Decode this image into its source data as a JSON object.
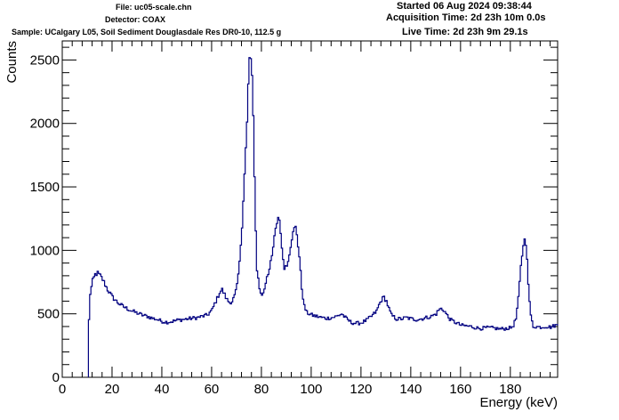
{
  "header": {
    "file": "File: uc05-scale.chn",
    "detector": "Detector: COAX",
    "sample": "Sample: UCalgary L05, Soil Sediment Douglasdale Res DR0-10, 112.5 g",
    "started": "Started 06 Aug 2024 09:38:44",
    "acquisition": "Acquisition Time: 2d 23h 10m 0.0s",
    "live": "Live Time: 2d 23h 9m 29.1s"
  },
  "chart_data": {
    "type": "line",
    "style": "step-histogram",
    "xlabel": "Energy (keV)",
    "ylabel": "Counts",
    "xlim": [
      0,
      199
    ],
    "ylim": [
      0,
      2650
    ],
    "x_ticks": [
      0,
      20,
      40,
      60,
      80,
      100,
      120,
      140,
      160,
      180
    ],
    "x_tick_labels": [
      "0",
      "20",
      "40",
      "60",
      "80",
      "100",
      "120",
      "140",
      "160",
      "180"
    ],
    "y_ticks": [
      0,
      500,
      1000,
      1500,
      2000,
      2500
    ],
    "y_tick_labels": [
      "0",
      "500",
      "1000",
      "1500",
      "2000",
      "2500"
    ],
    "line_color": "#000080",
    "series": [
      {
        "x": [
          10.5,
          11,
          12,
          13,
          14,
          15,
          16,
          17,
          18,
          20,
          22,
          24,
          26,
          28,
          30,
          32,
          34,
          36,
          38,
          40,
          42,
          44,
          46,
          48,
          50,
          52,
          54,
          56,
          58,
          60,
          61,
          62,
          63,
          64,
          65,
          66,
          67,
          68,
          69,
          70,
          71,
          72,
          73,
          74,
          74.5,
          75,
          75.5,
          76,
          76.5,
          77,
          77.5,
          78,
          79,
          80,
          81,
          82,
          83,
          84,
          85,
          86,
          86.5,
          87,
          87.5,
          88,
          89,
          90,
          91,
          92,
          93,
          93.5,
          94,
          95,
          96,
          97,
          98,
          99,
          100,
          102,
          104,
          106,
          108,
          110,
          112,
          114,
          116,
          118,
          120,
          122,
          124,
          126,
          127,
          128,
          129,
          130,
          131,
          132,
          134,
          136,
          138,
          140,
          142,
          144,
          146,
          148,
          150,
          151,
          152,
          153,
          154,
          155,
          156,
          158,
          160,
          162,
          164,
          166,
          168,
          170,
          172,
          174,
          176,
          178,
          180,
          181,
          182,
          183,
          184,
          185,
          185.5,
          186,
          186.5,
          187,
          188,
          189,
          190,
          192,
          194,
          196,
          198,
          199
        ],
        "y": [
          450,
          660,
          760,
          810,
          820,
          800,
          770,
          730,
          690,
          630,
          590,
          560,
          540,
          520,
          505,
          490,
          480,
          465,
          455,
          440,
          435,
          440,
          450,
          455,
          460,
          465,
          470,
          480,
          490,
          530,
          580,
          620,
          670,
          690,
          650,
          610,
          590,
          600,
          640,
          720,
          900,
          1200,
          1600,
          2000,
          2300,
          2520,
          2500,
          2350,
          2050,
          1600,
          1150,
          850,
          700,
          640,
          700,
          800,
          850,
          950,
          1100,
          1220,
          1260,
          1240,
          1150,
          1000,
          870,
          880,
          980,
          1100,
          1170,
          1180,
          1130,
          950,
          700,
          560,
          510,
          500,
          490,
          480,
          470,
          465,
          470,
          480,
          500,
          460,
          430,
          425,
          430,
          450,
          480,
          520,
          570,
          610,
          630,
          600,
          540,
          490,
          460,
          460,
          470,
          460,
          455,
          460,
          470,
          480,
          500,
          530,
          540,
          530,
          500,
          470,
          450,
          430,
          410,
          405,
          400,
          390,
          385,
          390,
          390,
          385,
          380,
          385,
          390,
          410,
          460,
          620,
          870,
          1050,
          1080,
          1060,
          950,
          720,
          480,
          400,
          400,
          395,
          400,
          395,
          410,
          410
        ]
      }
    ]
  }
}
